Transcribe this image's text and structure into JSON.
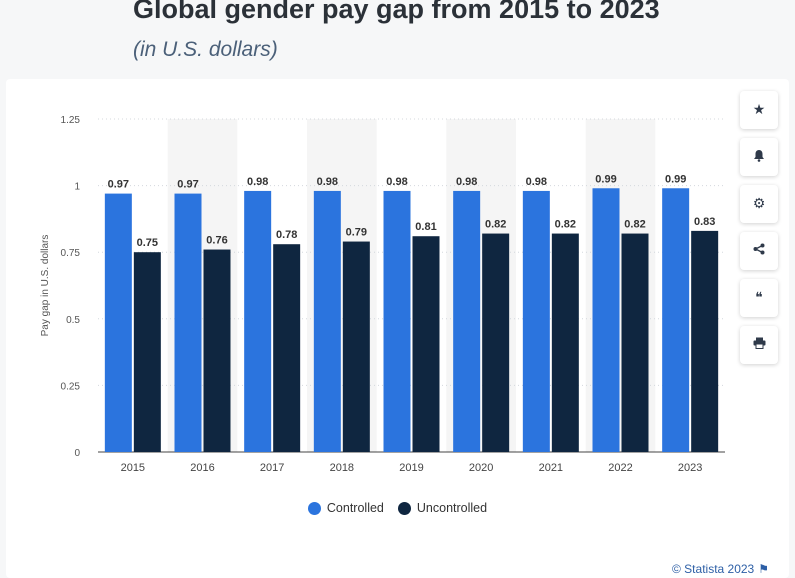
{
  "header": {
    "title": "Global gender pay gap from 2015 to 2023",
    "subtitle": "(in U.S. dollars)"
  },
  "toolbar": [
    {
      "icon": "star-icon",
      "glyph": "★"
    },
    {
      "icon": "bell-icon",
      "glyph": "🔔"
    },
    {
      "icon": "gear-icon",
      "glyph": "⚙"
    },
    {
      "icon": "share-icon",
      "glyph": "⋖"
    },
    {
      "icon": "quote-icon",
      "glyph": "❝"
    },
    {
      "icon": "print-icon",
      "glyph": "⎙"
    }
  ],
  "credit": {
    "text": "© Statista 2023",
    "flag": "⚑"
  },
  "colors": {
    "controlled": "#2b74de",
    "uncontrolled": "#0f2640",
    "band": "#f5f5f5",
    "grid": "#d4d8dd"
  },
  "chart_data": {
    "type": "bar",
    "title": "",
    "xlabel": "",
    "ylabel": "Pay gap in U.S. dollars",
    "categories": [
      "2015",
      "2016",
      "2017",
      "2018",
      "2019",
      "2020",
      "2021",
      "2022",
      "2023"
    ],
    "series": [
      {
        "name": "Controlled",
        "values": [
          0.97,
          0.97,
          0.98,
          0.98,
          0.98,
          0.98,
          0.98,
          0.99,
          0.99
        ]
      },
      {
        "name": "Uncontrolled",
        "values": [
          0.75,
          0.76,
          0.78,
          0.79,
          0.81,
          0.82,
          0.82,
          0.82,
          0.83
        ]
      }
    ],
    "ylim": [
      0,
      1.25
    ],
    "yticks": [
      "0",
      "0.25",
      "0.5",
      "0.75",
      "1",
      "1.25"
    ],
    "grid": true,
    "legend": "bottom"
  }
}
